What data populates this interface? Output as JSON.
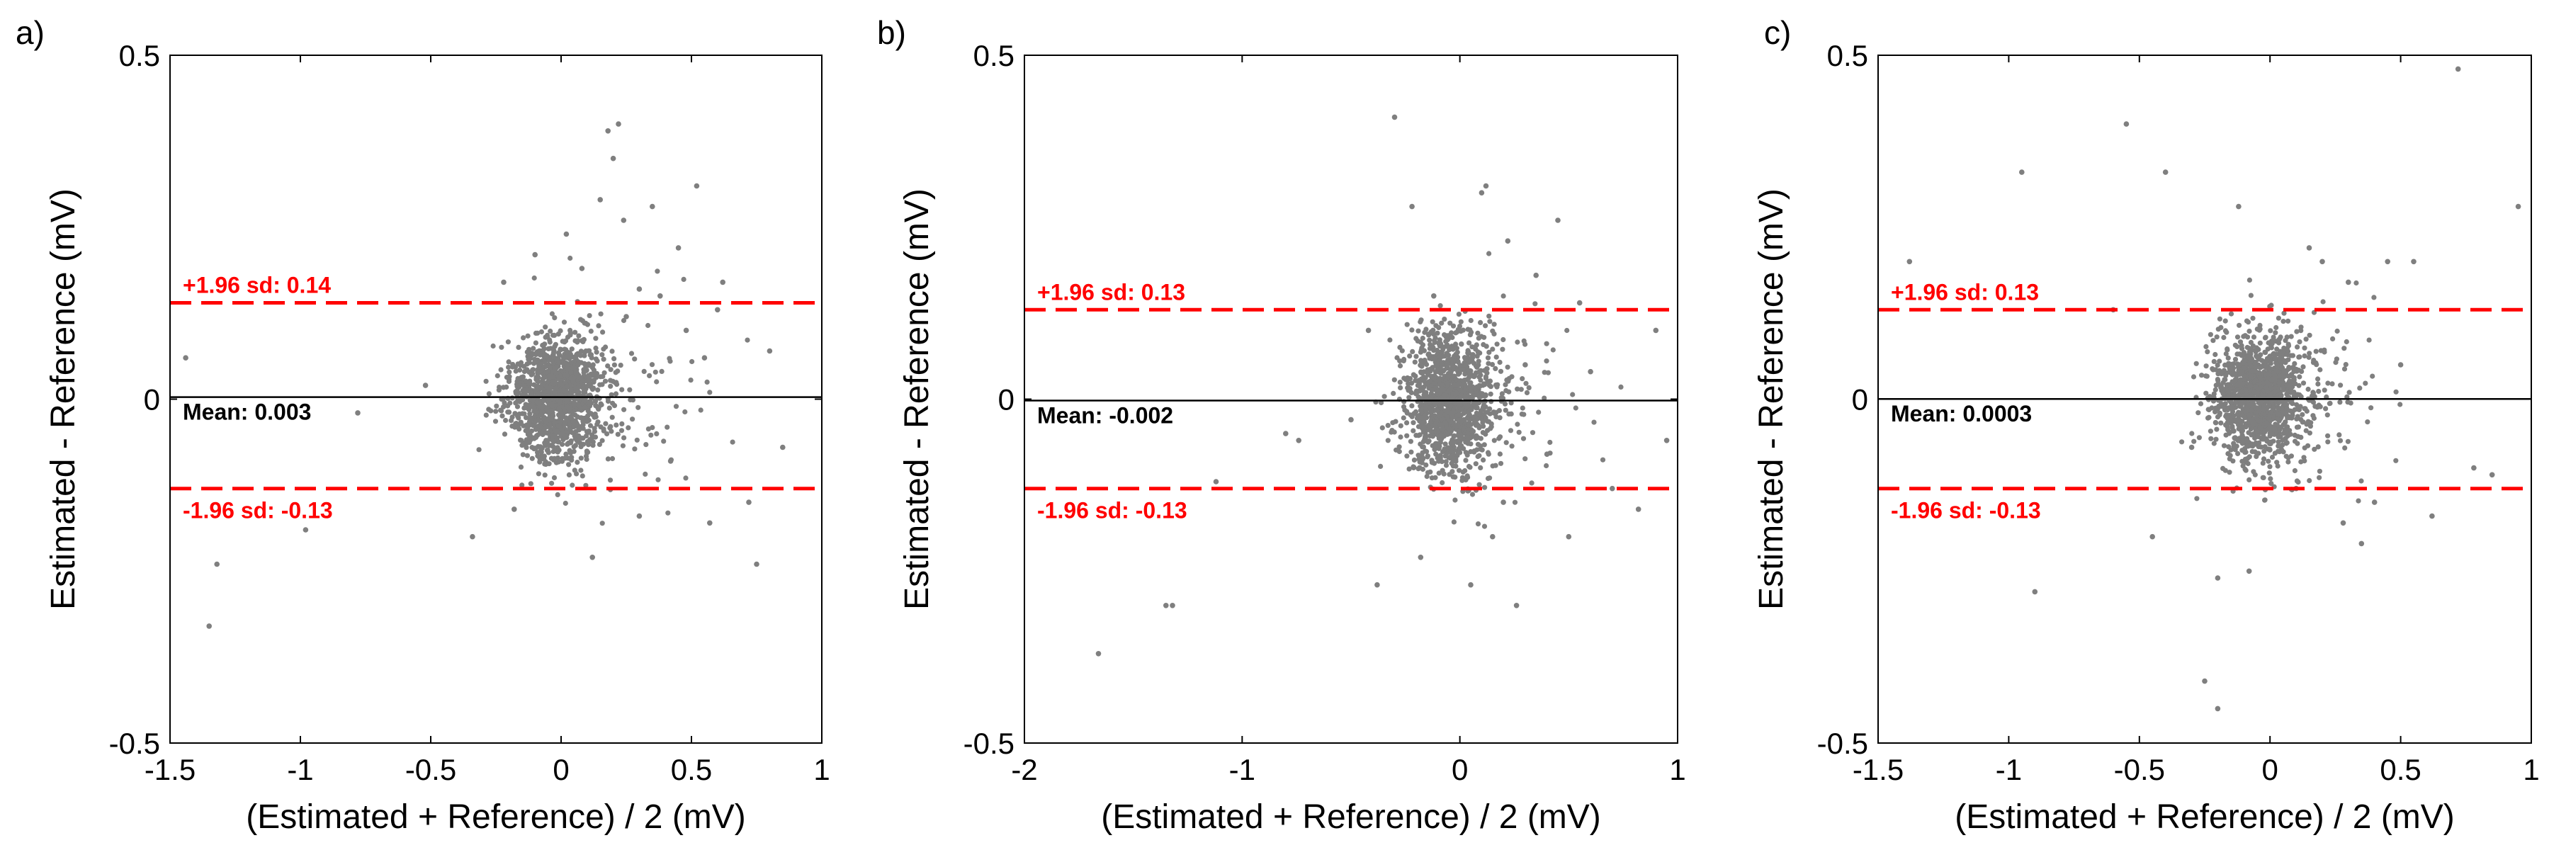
{
  "chart_data": [
    {
      "type": "scatter",
      "panel_label": "a)",
      "xlabel": "(Estimated + Reference) / 2 (mV)",
      "ylabel": "Estimated - Reference (mV)",
      "xlim": [
        -1.5,
        1
      ],
      "ylim": [
        -0.5,
        0.5
      ],
      "xticks": [
        -1.5,
        -1,
        -0.5,
        0,
        0.5,
        1
      ],
      "xtick_labels": [
        "-1.5",
        "-1",
        "-0.5",
        "0",
        "0.5",
        "1"
      ],
      "yticks": [
        -0.5,
        0,
        0.5
      ],
      "ytick_labels": [
        "-0.5",
        "0",
        "0.5"
      ],
      "mean": 0.003,
      "upper_loa": 0.14,
      "lower_loa": -0.13,
      "mean_label": "Mean: 0.003",
      "upper_label": "+1.96 sd: 0.14",
      "lower_label": "-1.96 sd: -0.13",
      "cluster": {
        "count": 1300,
        "center_x": -0.02,
        "spread_x": 0.09,
        "center_y": 0.0,
        "spread_y": 0.045,
        "seed": 11
      },
      "points": [
        {
          "x": -1.44,
          "y": 0.06
        },
        {
          "x": -1.35,
          "y": -0.33
        },
        {
          "x": -1.32,
          "y": -0.24
        },
        {
          "x": -0.98,
          "y": -0.19
        },
        {
          "x": -0.78,
          "y": -0.02
        },
        {
          "x": -0.52,
          "y": 0.02
        },
        {
          "x": -0.34,
          "y": -0.2
        },
        {
          "x": -0.22,
          "y": 0.17
        },
        {
          "x": -0.1,
          "y": 0.21
        },
        {
          "x": 0.02,
          "y": 0.24
        },
        {
          "x": 0.12,
          "y": -0.23
        },
        {
          "x": 0.15,
          "y": 0.29
        },
        {
          "x": 0.18,
          "y": 0.39
        },
        {
          "x": 0.2,
          "y": 0.35
        },
        {
          "x": 0.22,
          "y": 0.4
        },
        {
          "x": 0.24,
          "y": 0.26
        },
        {
          "x": 0.3,
          "y": 0.16
        },
        {
          "x": 0.35,
          "y": 0.28
        },
        {
          "x": 0.45,
          "y": 0.22
        },
        {
          "x": 0.52,
          "y": 0.31
        },
        {
          "x": 0.55,
          "y": 0.06
        },
        {
          "x": 0.57,
          "y": -0.18
        },
        {
          "x": 0.6,
          "y": 0.13
        },
        {
          "x": 0.62,
          "y": 0.17
        },
        {
          "x": 0.72,
          "y": -0.15
        },
        {
          "x": 0.75,
          "y": -0.24
        },
        {
          "x": 0.8,
          "y": 0.07
        },
        {
          "x": 0.85,
          "y": -0.07
        },
        {
          "x": 0.38,
          "y": 0.15
        },
        {
          "x": 0.42,
          "y": -0.09
        },
        {
          "x": 0.3,
          "y": -0.17
        },
        {
          "x": -0.18,
          "y": -0.16
        },
        {
          "x": 0.08,
          "y": 0.19
        },
        {
          "x": 0.25,
          "y": 0.12
        },
        {
          "x": 0.48,
          "y": 0.1
        }
      ]
    },
    {
      "type": "scatter",
      "panel_label": "b)",
      "xlabel": "(Estimated + Reference) / 2 (mV)",
      "ylabel": "Estimated - Reference (mV)",
      "xlim": [
        -2,
        1
      ],
      "ylim": [
        -0.5,
        0.5
      ],
      "xticks": [
        -2,
        -1,
        0,
        1
      ],
      "xtick_labels": [
        "-2",
        "-1",
        "0",
        "1"
      ],
      "yticks": [
        -0.5,
        0,
        0.5
      ],
      "ytick_labels": [
        "-0.5",
        "0",
        "0.5"
      ],
      "mean": -0.002,
      "upper_loa": 0.13,
      "lower_loa": -0.13,
      "mean_label": "Mean: -0.002",
      "upper_label": "+1.96 sd: 0.13",
      "lower_label": "-1.96 sd: -0.13",
      "cluster": {
        "count": 1300,
        "center_x": -0.06,
        "spread_x": 0.1,
        "center_y": -0.005,
        "spread_y": 0.05,
        "seed": 23
      },
      "points": [
        {
          "x": -1.66,
          "y": -0.37
        },
        {
          "x": -1.35,
          "y": -0.3
        },
        {
          "x": -1.32,
          "y": -0.3
        },
        {
          "x": -1.12,
          "y": -0.12
        },
        {
          "x": -0.8,
          "y": -0.05
        },
        {
          "x": -0.74,
          "y": -0.06
        },
        {
          "x": -0.5,
          "y": -0.03
        },
        {
          "x": -0.42,
          "y": 0.1
        },
        {
          "x": -0.38,
          "y": -0.27
        },
        {
          "x": -0.3,
          "y": 0.41
        },
        {
          "x": -0.22,
          "y": 0.28
        },
        {
          "x": -0.18,
          "y": -0.23
        },
        {
          "x": 0.05,
          "y": -0.27
        },
        {
          "x": 0.1,
          "y": 0.3
        },
        {
          "x": 0.12,
          "y": 0.31
        },
        {
          "x": 0.15,
          "y": -0.2
        },
        {
          "x": 0.22,
          "y": 0.23
        },
        {
          "x": 0.26,
          "y": -0.3
        },
        {
          "x": 0.45,
          "y": 0.26
        },
        {
          "x": 0.5,
          "y": -0.2
        },
        {
          "x": 0.55,
          "y": 0.14
        },
        {
          "x": 0.6,
          "y": 0.04
        },
        {
          "x": 0.7,
          "y": -0.13
        },
        {
          "x": 0.82,
          "y": -0.16
        },
        {
          "x": 0.9,
          "y": 0.1
        },
        {
          "x": 0.95,
          "y": -0.06
        },
        {
          "x": 0.35,
          "y": 0.18
        },
        {
          "x": 0.4,
          "y": -0.08
        },
        {
          "x": -0.12,
          "y": 0.15
        },
        {
          "x": 0.2,
          "y": -0.15
        },
        {
          "x": 0.3,
          "y": 0.05
        }
      ]
    },
    {
      "type": "scatter",
      "panel_label": "c)",
      "xlabel": "(Estimated + Reference) / 2 (mV)",
      "ylabel": "Estimated - Reference (mV)",
      "xlim": [
        -1.5,
        1
      ],
      "ylim": [
        -0.5,
        0.5
      ],
      "xticks": [
        -1.5,
        -1,
        -0.5,
        0,
        0.5,
        1
      ],
      "xtick_labels": [
        "-1.5",
        "-1",
        "-0.5",
        "0",
        "0.5",
        "1"
      ],
      "yticks": [
        -0.5,
        0,
        0.5
      ],
      "ytick_labels": [
        "-0.5",
        "0",
        "0.5"
      ],
      "mean": 0.0003,
      "upper_loa": 0.13,
      "lower_loa": -0.13,
      "mean_label": "Mean: 0.0003",
      "upper_label": "+1.96 sd: 0.13",
      "lower_label": "-1.96 sd: -0.13",
      "cluster": {
        "count": 1300,
        "center_x": -0.04,
        "spread_x": 0.09,
        "center_y": 0.0,
        "spread_y": 0.045,
        "seed": 37
      },
      "points": [
        {
          "x": -1.38,
          "y": 0.2
        },
        {
          "x": -0.95,
          "y": 0.33
        },
        {
          "x": -0.9,
          "y": -0.28
        },
        {
          "x": -0.55,
          "y": 0.4
        },
        {
          "x": -0.45,
          "y": -0.2
        },
        {
          "x": -0.4,
          "y": 0.33
        },
        {
          "x": -0.25,
          "y": -0.41
        },
        {
          "x": -0.2,
          "y": -0.45
        },
        {
          "x": -0.2,
          "y": -0.26
        },
        {
          "x": -0.12,
          "y": 0.28
        },
        {
          "x": -0.08,
          "y": -0.25
        },
        {
          "x": 0.15,
          "y": 0.22
        },
        {
          "x": 0.2,
          "y": 0.2
        },
        {
          "x": 0.28,
          "y": -0.18
        },
        {
          "x": 0.35,
          "y": -0.21
        },
        {
          "x": 0.45,
          "y": 0.2
        },
        {
          "x": 0.55,
          "y": 0.2
        },
        {
          "x": 0.62,
          "y": -0.17
        },
        {
          "x": 0.72,
          "y": 0.48
        },
        {
          "x": 0.78,
          "y": -0.1
        },
        {
          "x": 0.85,
          "y": -0.11
        },
        {
          "x": 0.95,
          "y": 0.28
        },
        {
          "x": -0.6,
          "y": 0.13
        },
        {
          "x": 0.4,
          "y": -0.15
        },
        {
          "x": 0.3,
          "y": 0.17
        },
        {
          "x": 0.1,
          "y": -0.13
        },
        {
          "x": 0.5,
          "y": 0.05
        },
        {
          "x": -0.3,
          "y": -0.07
        }
      ]
    }
  ]
}
